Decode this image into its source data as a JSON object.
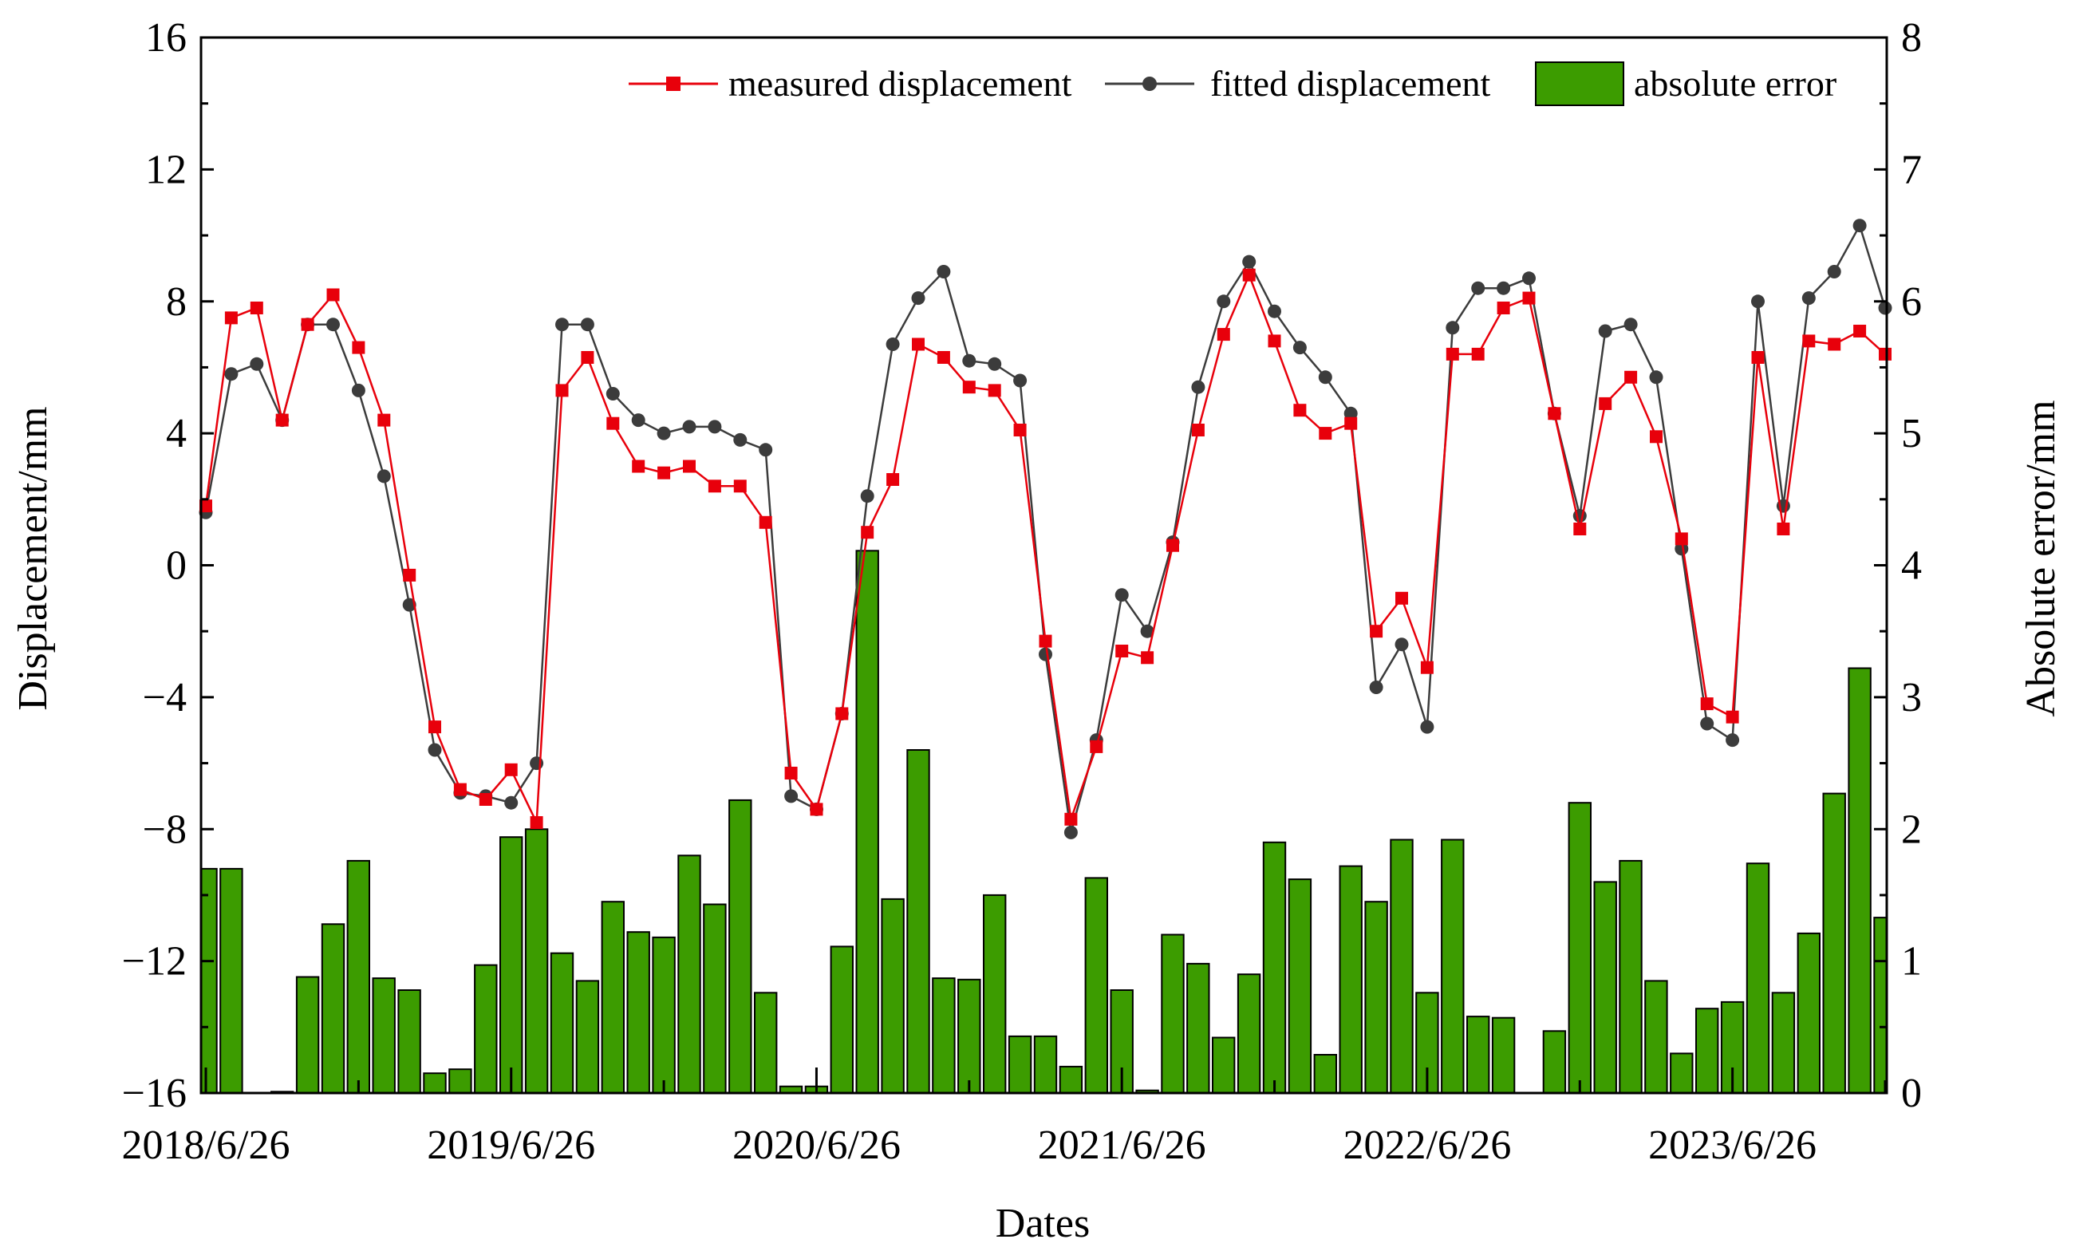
{
  "chart_data": {
    "type": "line+bar",
    "x_tick_labels": [
      "2018/6/26",
      "2019/6/26",
      "2020/6/26",
      "2021/6/26",
      "2022/6/26",
      "2023/6/26"
    ],
    "xlabel": "Dates",
    "ylabel_left": "Displacement/mm",
    "ylabel_right": "Absolute error/mm",
    "ylim_left": [
      -16,
      16
    ],
    "yticks_left": [
      -16,
      -12,
      -8,
      -4,
      0,
      4,
      8,
      12,
      16
    ],
    "ylim_right": [
      0,
      8
    ],
    "yticks_right": [
      0,
      1,
      2,
      3,
      4,
      5,
      6,
      7,
      8
    ],
    "legend": {
      "measured": "measured displacement",
      "fitted": "fitted displacement",
      "error": "absolute error"
    },
    "colors": {
      "measured": "#e8000b",
      "fitted": "#3c3c3c",
      "error": "#3c9c00"
    },
    "measured_displacement": [
      1.8,
      7.5,
      7.8,
      4.4,
      7.3,
      8.2,
      6.6,
      4.4,
      -0.3,
      -4.9,
      -6.8,
      -7.1,
      -6.2,
      -7.8,
      5.3,
      6.3,
      4.3,
      3.0,
      2.8,
      3.0,
      2.4,
      2.4,
      1.3,
      -6.3,
      -7.4,
      -4.5,
      1.0,
      2.6,
      6.7,
      6.3,
      5.4,
      5.3,
      4.1,
      -2.3,
      -7.7,
      -5.5,
      -2.6,
      -2.8,
      0.6,
      4.1,
      7.0,
      8.8,
      6.8,
      4.7,
      4.0,
      4.3,
      -2.0,
      -1.0,
      -3.1,
      6.4,
      6.4,
      7.8,
      8.1,
      4.6,
      1.1,
      4.9,
      5.7,
      3.9,
      0.8,
      -4.2,
      -4.6,
      6.3,
      1.1,
      6.8,
      6.7,
      7.1,
      6.4
    ],
    "fitted_displacement": [
      1.6,
      5.8,
      6.1,
      4.4,
      7.3,
      7.3,
      5.3,
      2.7,
      -1.2,
      -5.6,
      -6.9,
      -7.0,
      -7.2,
      -6.0,
      7.3,
      7.3,
      5.2,
      4.4,
      4.0,
      4.2,
      4.2,
      3.8,
      3.5,
      -7.0,
      -7.4,
      -4.5,
      2.1,
      6.7,
      8.1,
      8.9,
      6.2,
      6.1,
      5.6,
      -2.7,
      -8.1,
      -5.3,
      -0.9,
      -2.0,
      0.7,
      5.4,
      8.0,
      9.2,
      7.7,
      6.6,
      5.7,
      4.6,
      -3.7,
      -2.4,
      -4.9,
      7.2,
      8.4,
      8.4,
      8.7,
      4.6,
      1.5,
      7.1,
      7.3,
      5.7,
      0.5,
      -4.8,
      -5.3,
      8.0,
      1.8,
      8.1,
      8.9,
      10.3,
      7.8
    ],
    "absolute_error": [
      1.7,
      1.7,
      0.0,
      0.01,
      0.88,
      1.28,
      1.76,
      0.87,
      0.78,
      0.15,
      0.18,
      0.97,
      1.94,
      2.0,
      1.06,
      0.85,
      1.45,
      1.22,
      1.18,
      1.8,
      1.43,
      2.22,
      0.76,
      0.05,
      0.05,
      1.11,
      4.11,
      1.47,
      2.6,
      0.87,
      0.86,
      1.5,
      0.43,
      0.43,
      0.2,
      1.63,
      0.78,
      0.02,
      1.2,
      0.98,
      0.42,
      0.9,
      1.9,
      1.62,
      0.29,
      1.72,
      1.45,
      1.92,
      0.76,
      1.92,
      0.58,
      0.57,
      0.0,
      0.47,
      2.2,
      1.6,
      1.76,
      0.85,
      0.3,
      0.64,
      0.69,
      1.74,
      0.76,
      1.21,
      2.27,
      3.22,
      1.33
    ]
  }
}
